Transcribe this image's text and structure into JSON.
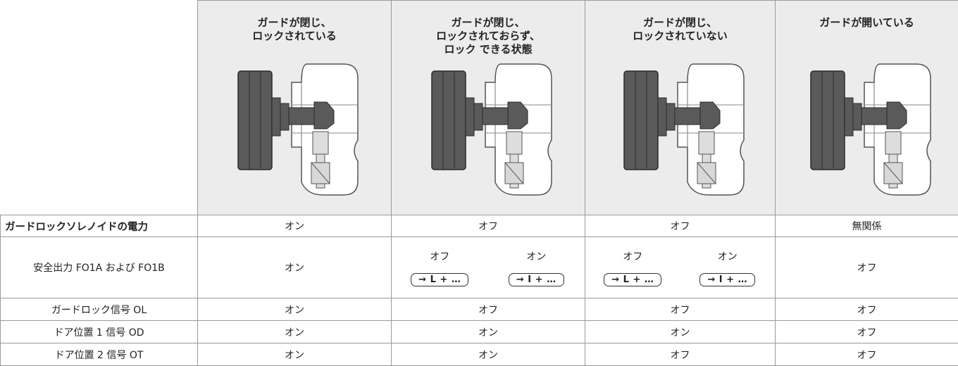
{
  "header": {
    "columns": [
      "ガードが閉じ、\nロックされている",
      "ガードが閉じ、\nロックされておらず、\nロック できる状態",
      "ガードが閉じ、\nロックされていない",
      "ガードが開いている"
    ]
  },
  "rows": [
    {
      "label": "ガードロックソレノイドの電力",
      "cells": [
        "オン",
        "オフ",
        "オフ",
        "無関係"
      ]
    },
    {
      "label": "安全出力 FO1A および FO1B",
      "cells": [
        "オン",
        [
          {
            "state": "オフ",
            "button": "→ L + …"
          },
          {
            "state": "オン",
            "button": "→ I + …"
          }
        ],
        [
          {
            "state": "オフ",
            "button": "→ L + …"
          },
          {
            "state": "オン",
            "button": "→ I + …"
          }
        ],
        "オフ"
      ]
    },
    {
      "label": "ガードロック信号 OL",
      "cells": [
        "オン",
        "オフ",
        "オフ",
        "オフ"
      ]
    },
    {
      "label": "ドア位置 1 信号 OD",
      "cells": [
        "オン",
        "オン",
        "オン",
        "オフ"
      ]
    },
    {
      "label": "ドア位置 2 信号 OT",
      "cells": [
        "オン",
        "オン",
        "オフ",
        "オフ"
      ]
    }
  ]
}
